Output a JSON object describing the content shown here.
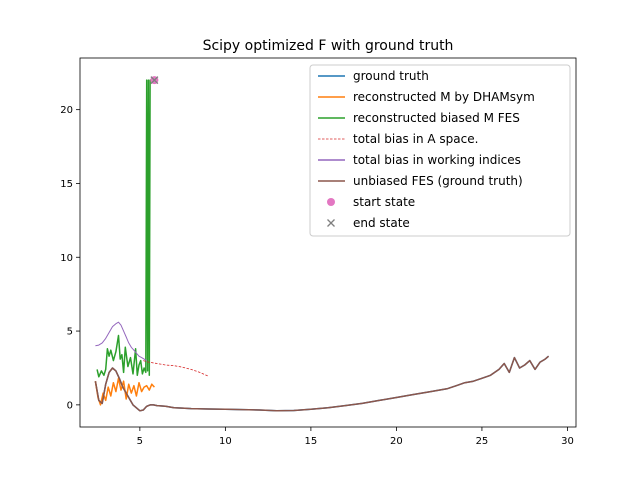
{
  "chart_data": {
    "type": "line",
    "title": "Scipy optimized F with ground truth",
    "xlabel": "",
    "ylabel": "",
    "xlim": [
      1.5,
      30.5
    ],
    "ylim": [
      -1.5,
      23.5
    ],
    "xticks": [
      5,
      10,
      15,
      20,
      25,
      30
    ],
    "yticks": [
      0,
      5,
      10,
      15,
      20
    ],
    "grid": false,
    "legend_position": "top-right",
    "series": [
      {
        "name": "ground truth",
        "color": "#1f77b4",
        "style": "solid",
        "x": [
          2.4,
          2.6,
          2.8,
          3.0,
          3.2,
          3.4,
          3.6,
          3.8,
          4.0,
          4.2,
          4.4,
          4.6,
          4.8,
          5.0,
          5.2,
          5.4,
          5.6,
          5.8,
          6.0,
          6.5,
          7.0,
          7.5,
          8.0,
          9.0,
          10.0,
          11.0,
          12.0,
          13.0,
          14.0,
          15.0,
          16.0,
          17.0,
          18.0,
          19.0,
          20.0,
          21.0,
          22.0,
          23.0,
          23.5,
          24.0,
          24.5,
          25.0,
          25.5,
          26.0,
          26.3,
          26.6,
          26.9,
          27.2,
          27.5,
          27.8,
          28.1,
          28.4,
          28.7,
          28.9
        ],
        "y": [
          1.6,
          0.3,
          0.1,
          1.4,
          2.2,
          2.5,
          2.3,
          1.8,
          1.2,
          0.8,
          0.4,
          0.0,
          -0.2,
          -0.4,
          -0.35,
          -0.1,
          0.0,
          0.0,
          -0.05,
          -0.1,
          -0.2,
          -0.22,
          -0.25,
          -0.28,
          -0.3,
          -0.32,
          -0.35,
          -0.4,
          -0.38,
          -0.3,
          -0.2,
          -0.05,
          0.1,
          0.3,
          0.5,
          0.7,
          0.9,
          1.1,
          1.3,
          1.5,
          1.6,
          1.8,
          2.0,
          2.4,
          2.8,
          2.2,
          3.2,
          2.5,
          2.7,
          3.0,
          2.4,
          2.9,
          3.1,
          3.3
        ]
      },
      {
        "name": "reconstructed M by DHAMsym",
        "color": "#ff7f0e",
        "style": "solid",
        "x": [
          2.4,
          2.55,
          2.7,
          2.85,
          3.0,
          3.15,
          3.3,
          3.45,
          3.6,
          3.75,
          3.9,
          4.05,
          4.2,
          4.35,
          4.5,
          4.65,
          4.8,
          4.95,
          5.1,
          5.25,
          5.4,
          5.55,
          5.7,
          5.85
        ],
        "y": [
          1.6,
          0.5,
          0.0,
          0.8,
          0.3,
          1.2,
          0.6,
          1.5,
          0.9,
          1.8,
          1.0,
          1.6,
          0.4,
          1.4,
          0.8,
          1.3,
          0.6,
          1.5,
          0.9,
          1.2,
          1.3,
          1.0,
          1.4,
          1.2
        ]
      },
      {
        "name": "reconstructed biased M FES",
        "color": "#2ca02c",
        "style": "solid",
        "x": [
          2.5,
          2.6,
          2.75,
          2.9,
          3.0,
          3.1,
          3.2,
          3.3,
          3.45,
          3.6,
          3.75,
          3.85,
          3.95,
          4.05,
          4.15,
          4.3,
          4.45,
          4.6,
          4.75,
          4.85,
          4.95,
          5.05,
          5.15,
          5.25,
          5.35,
          5.4,
          5.45,
          5.5,
          5.55,
          5.6,
          5.65
        ],
        "y": [
          2.4,
          1.9,
          2.3,
          2.0,
          2.4,
          3.8,
          3.3,
          3.7,
          3.0,
          3.6,
          4.7,
          3.1,
          3.4,
          2.2,
          3.9,
          2.6,
          3.2,
          2.1,
          3.8,
          2.0,
          2.7,
          3.0,
          2.1,
          2.5,
          2.2,
          22.0,
          2.3,
          22.0,
          2.0,
          22.0,
          22.0
        ]
      },
      {
        "name": "total bias in A space.",
        "color": "#d62728",
        "style": "dashed",
        "x": [
          5.2,
          5.5,
          6.0,
          6.5,
          7.0,
          7.5,
          8.0,
          8.5,
          9.0
        ],
        "y": [
          3.0,
          2.9,
          2.8,
          2.7,
          2.65,
          2.55,
          2.4,
          2.2,
          1.95
        ]
      },
      {
        "name": "total bias in working indices",
        "color": "#9467bd",
        "style": "solid",
        "x": [
          2.4,
          2.6,
          2.8,
          3.0,
          3.2,
          3.4,
          3.6,
          3.75,
          3.9,
          4.05,
          4.2,
          4.35,
          4.5,
          4.65,
          4.8,
          4.95,
          5.1,
          5.25,
          5.4
        ],
        "y": [
          4.0,
          4.05,
          4.2,
          4.5,
          4.9,
          5.3,
          5.5,
          5.6,
          5.4,
          5.0,
          4.6,
          4.2,
          3.9,
          3.7,
          3.5,
          3.3,
          3.2,
          3.1,
          3.0
        ]
      },
      {
        "name": "unbiased FES (ground truth)",
        "color": "#8c564b",
        "style": "solid",
        "x": [
          2.4,
          2.6,
          2.8,
          3.0,
          3.2,
          3.4,
          3.6,
          3.8,
          4.0,
          4.2,
          4.4,
          4.6,
          4.8,
          5.0,
          5.2,
          5.4,
          5.6,
          5.8,
          6.0,
          6.5,
          7.0,
          7.5,
          8.0,
          9.0,
          10.0,
          11.0,
          12.0,
          13.0,
          14.0,
          15.0,
          16.0,
          17.0,
          18.0,
          19.0,
          20.0,
          21.0,
          22.0,
          23.0,
          23.5,
          24.0,
          24.5,
          25.0,
          25.5,
          26.0,
          26.3,
          26.6,
          26.9,
          27.2,
          27.5,
          27.8,
          28.1,
          28.4,
          28.7,
          28.9
        ],
        "y": [
          1.6,
          0.3,
          0.1,
          1.4,
          2.2,
          2.5,
          2.3,
          1.8,
          1.2,
          0.8,
          0.4,
          0.0,
          -0.2,
          -0.4,
          -0.35,
          -0.1,
          0.0,
          0.0,
          -0.05,
          -0.1,
          -0.2,
          -0.22,
          -0.25,
          -0.28,
          -0.3,
          -0.32,
          -0.35,
          -0.4,
          -0.38,
          -0.3,
          -0.2,
          -0.05,
          0.1,
          0.3,
          0.5,
          0.7,
          0.9,
          1.1,
          1.3,
          1.5,
          1.6,
          1.8,
          2.0,
          2.4,
          2.8,
          2.2,
          3.2,
          2.5,
          2.7,
          3.0,
          2.4,
          2.9,
          3.1,
          3.3
        ]
      }
    ],
    "markers": [
      {
        "name": "start state",
        "color": "#e377c2",
        "shape": "circle",
        "x": 5.85,
        "y": 22.0
      },
      {
        "name": "end state",
        "color": "#7f7f7f",
        "shape": "x",
        "x": 5.85,
        "y": 22.0
      }
    ]
  }
}
